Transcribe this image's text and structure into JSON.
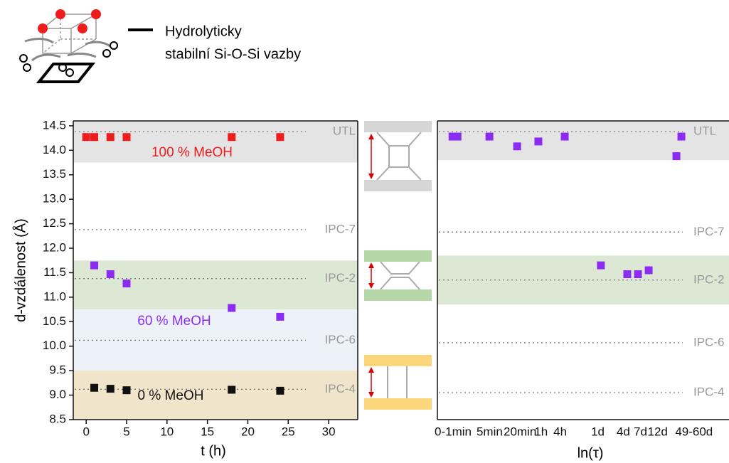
{
  "key": {
    "lines": [
      "Hydrolyticky",
      "stabilní Si-O-Si vazby"
    ]
  },
  "chart_data": [
    {
      "type": "scatter",
      "xlabel": "t (h)",
      "ylabel": "d-vzdálenost (Å)",
      "xlim": [
        -1.6,
        33.6
      ],
      "ylim": [
        8.5,
        14.6
      ],
      "xticks": [
        0,
        5,
        10,
        15,
        20,
        25,
        30
      ],
      "yticks": [
        8.5,
        {
          "value": 9,
          "label": "9.0"
        },
        9.5,
        {
          "value": 10,
          "label": "10.0"
        },
        10.5,
        {
          "value": 11,
          "label": "11.0"
        },
        11.5,
        {
          "value": 12,
          "label": "12.0"
        },
        12.5,
        {
          "value": 13,
          "label": "13.0"
        },
        13.5,
        {
          "value": 14,
          "label": "14.0"
        },
        14.5
      ],
      "bands": [
        {
          "from": 13.75,
          "to": 14.6,
          "color": "#e4e4e4"
        },
        {
          "from": 10.75,
          "to": 11.75,
          "color": "#dce8d4"
        },
        {
          "from": 9.5,
          "to": 10.75,
          "color": "#edf2f8"
        },
        {
          "from": 8.5,
          "to": 9.5,
          "color": "#f0e5cb"
        }
      ],
      "reference_lines": [
        {
          "value": 14.38,
          "label": "UTL"
        },
        {
          "value": 12.38,
          "label": "IPC-7"
        },
        {
          "value": 11.38,
          "label": "IPC-2"
        },
        {
          "value": 10.12,
          "label": "IPC-6"
        },
        {
          "value": 9.12,
          "label": "IPC-4"
        }
      ],
      "series": [
        {
          "name": "100 % MeOH",
          "color": "#ee1c1c",
          "x": [
            0,
            1,
            3,
            5,
            18,
            24
          ],
          "values": [
            14.27,
            14.27,
            14.27,
            14.27,
            14.27,
            14.27
          ]
        },
        {
          "name": "60 % MeOH",
          "color": "#8c2cf2",
          "x": [
            1,
            3,
            5,
            18,
            24
          ],
          "values": [
            11.65,
            11.47,
            11.28,
            10.78,
            10.6
          ]
        },
        {
          "name": "0 % MeOH",
          "color": "#111111",
          "x": [
            1,
            3,
            5,
            18,
            24
          ],
          "values": [
            9.15,
            9.13,
            9.1,
            9.11,
            9.09
          ]
        }
      ]
    },
    {
      "type": "scatter",
      "xlabel": "ln(τ)",
      "xlim": [
        -1.12,
        14.13
      ],
      "ylim": [
        8.5,
        14.6
      ],
      "xticks": [
        {
          "value": -0.3,
          "label": "0-1min"
        },
        {
          "value": 1.61,
          "label": "5min"
        },
        {
          "value": 3.2,
          "label": "20min"
        },
        {
          "value": 4.3,
          "label": "1h"
        },
        {
          "value": 5.3,
          "label": "4h"
        },
        {
          "value": 7.27,
          "label": "1d"
        },
        {
          "value": 8.6,
          "label": "4d"
        },
        {
          "value": 9.5,
          "label": "7d"
        },
        {
          "value": 10.4,
          "label": "12d"
        },
        {
          "value": 12.3,
          "label": "49-60d"
        }
      ],
      "bands": [
        {
          "from": 13.8,
          "to": 14.6,
          "color": "#e4e4e4"
        },
        {
          "from": 10.85,
          "to": 11.85,
          "color": "#dce8d4"
        }
      ],
      "reference_lines": [
        {
          "value": 14.38,
          "label": "UTL"
        },
        {
          "value": 12.33,
          "label": "IPC-7"
        },
        {
          "value": 11.35,
          "label": "IPC-2"
        },
        {
          "value": 10.07,
          "label": "IPC-6"
        },
        {
          "value": 9.05,
          "label": "IPC-4"
        }
      ],
      "series": [
        {
          "color": "#8c2cf2",
          "x": [
            -0.33,
            -0.07,
            1.6,
            3.05,
            4.16,
            5.54,
            7.43,
            8.81,
            9.37,
            9.93,
            11.38,
            11.64
          ],
          "values": [
            14.28,
            14.28,
            14.28,
            14.08,
            14.18,
            14.28,
            11.65,
            11.47,
            11.47,
            11.55,
            13.88,
            14.28
          ]
        }
      ]
    }
  ]
}
